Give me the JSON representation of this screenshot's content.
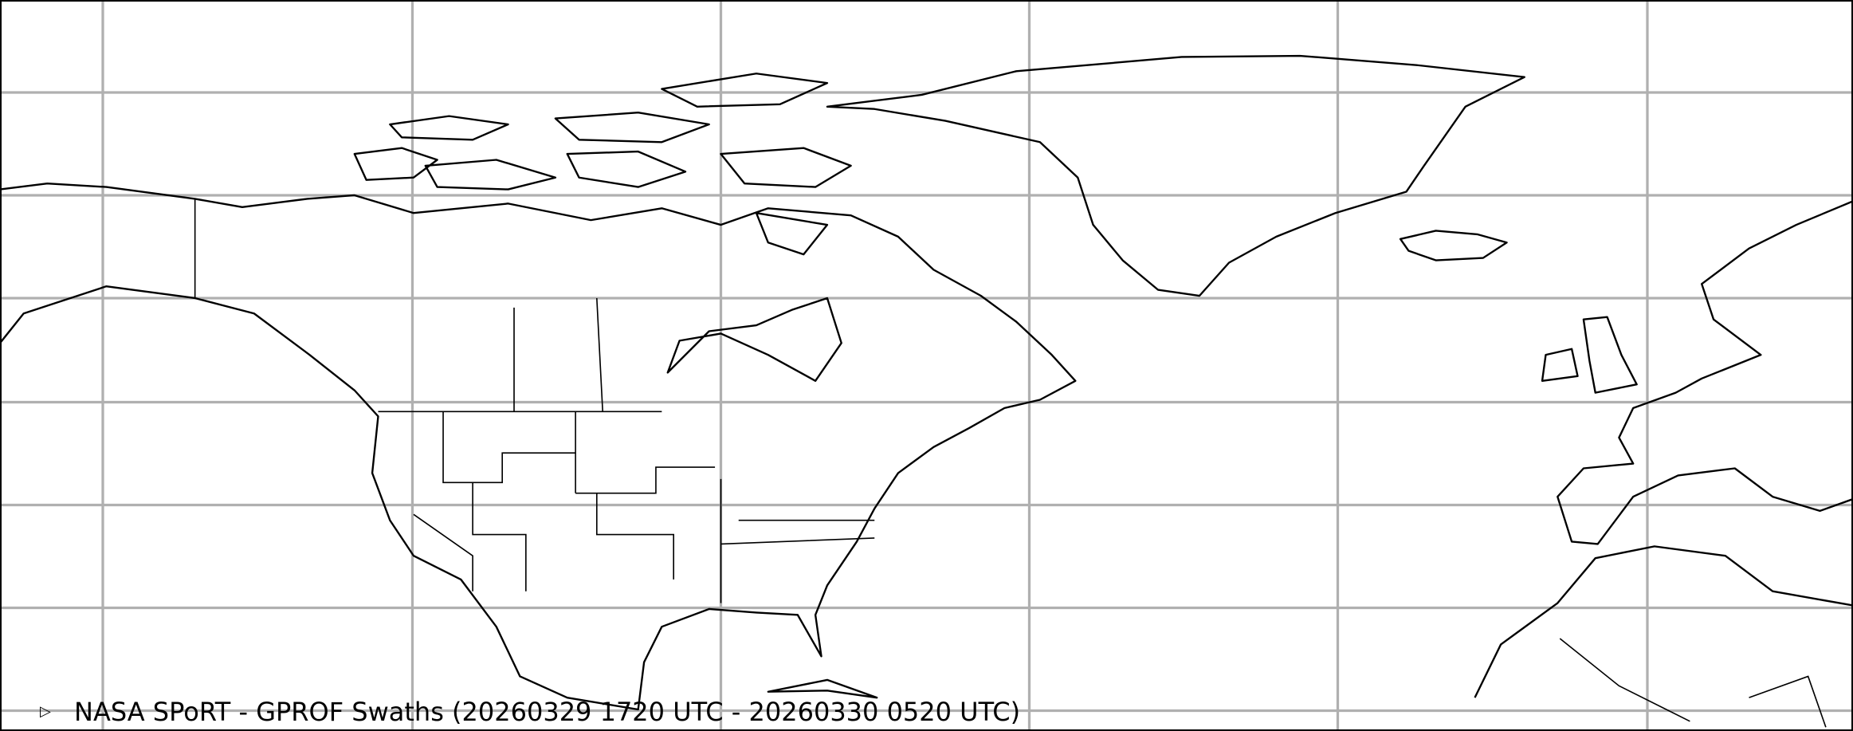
{
  "map": {
    "caption": "NASA SPoRT - GPROF Swaths (20260329 1720 UTC - 20260330 0520 UTC)",
    "caption_icon": "play-triangle-icon",
    "gridline_color": "#b0b0b0",
    "coastline_color": "#000000",
    "background_color": "#ffffff"
  }
}
